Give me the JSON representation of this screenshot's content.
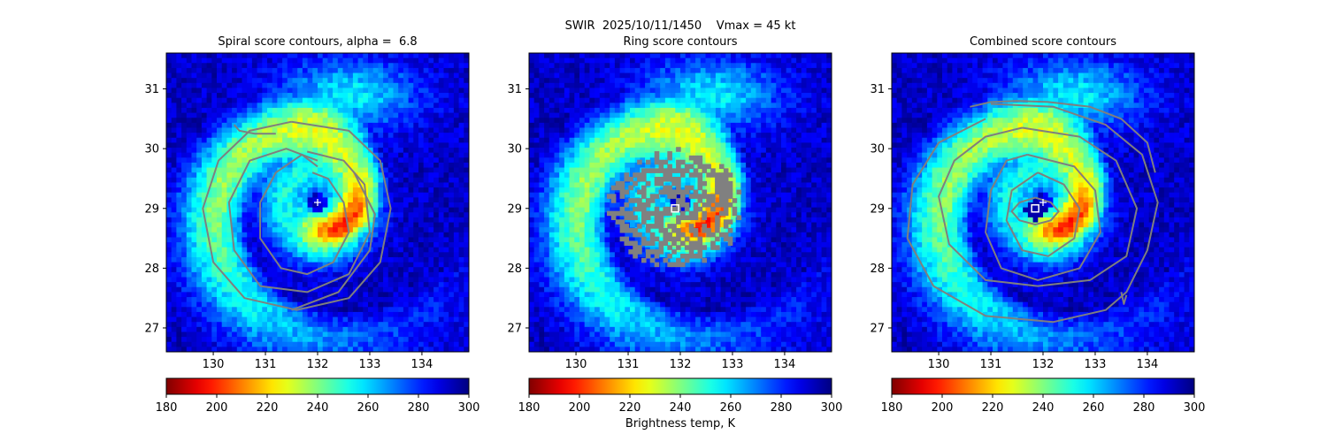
{
  "figure": {
    "suptitle": "SWIR  2025/10/11/1450    Vmax = 45 kt",
    "colorbar_label": "Brightness temp, K"
  },
  "chart_data": [
    {
      "type": "heatmap",
      "title": "Spiral score contours, alpha =  6.8",
      "xlim": [
        129.1,
        134.9
      ],
      "ylim": [
        26.6,
        31.6
      ],
      "x_ticks": [
        130,
        131,
        132,
        133,
        134
      ],
      "y_ticks": [
        27,
        28,
        29,
        30,
        31
      ],
      "colorscale": "jet_r",
      "value_range": [
        180,
        300
      ],
      "colorbar_ticks": [
        180,
        200,
        220,
        240,
        260,
        280,
        300
      ],
      "center_marker": {
        "shape": "plus",
        "x": 132.0,
        "y": 29.1
      },
      "contours": [
        {
          "x": [
            131.9,
            132.2,
            132.5,
            132.6,
            132.3,
            131.8,
            131.3,
            130.9,
            130.9,
            131.2,
            131.7,
            132.0
          ],
          "y": [
            29.6,
            29.5,
            29.1,
            28.6,
            28.1,
            27.9,
            28.0,
            28.5,
            29.1,
            29.6,
            29.9,
            29.7
          ]
        },
        {
          "x": [
            131.8,
            132.5,
            132.9,
            133.0,
            132.6,
            131.8,
            130.9,
            130.4,
            130.3,
            130.7,
            131.4,
            132.0
          ],
          "y": [
            29.95,
            29.8,
            29.4,
            28.6,
            27.9,
            27.6,
            27.7,
            28.3,
            29.1,
            29.8,
            30.0,
            29.8
          ]
        },
        {
          "x": [
            131.5,
            132.6,
            133.2,
            133.4,
            133.2,
            132.6,
            131.6,
            130.6,
            130.0,
            129.8,
            130.1,
            130.7,
            131.5
          ],
          "y": [
            30.45,
            30.3,
            29.8,
            29.0,
            28.1,
            27.5,
            27.3,
            27.5,
            28.1,
            29.0,
            29.8,
            30.3,
            30.45
          ]
        },
        {
          "x": [
            131.5,
            132.4,
            133.0,
            133.1,
            132.7
          ],
          "y": [
            27.3,
            27.6,
            28.3,
            28.9,
            29.6
          ]
        },
        {
          "x": [
            130.4,
            130.5,
            130.8,
            131.2
          ],
          "y": [
            30.4,
            30.3,
            30.25,
            30.25
          ]
        }
      ]
    },
    {
      "type": "heatmap",
      "title": "Ring score contours",
      "xlim": [
        129.1,
        134.9
      ],
      "ylim": [
        26.6,
        31.6
      ],
      "x_ticks": [
        130,
        131,
        132,
        133,
        134
      ],
      "y_ticks": [
        27,
        28,
        29,
        30,
        31
      ],
      "colorscale": "jet_r",
      "value_range": [
        180,
        300
      ],
      "colorbar_ticks": [
        180,
        200,
        220,
        240,
        260,
        280,
        300
      ],
      "center_marker": {
        "shape": "square",
        "x": 131.9,
        "y": 29.0
      },
      "ring_region": {
        "center_x": 131.9,
        "center_y": 29.0,
        "radius_lon": 1.3,
        "radius_lat": 1.0
      }
    },
    {
      "type": "heatmap",
      "title": "Combined score contours",
      "xlim": [
        129.1,
        134.9
      ],
      "ylim": [
        26.6,
        31.6
      ],
      "x_ticks": [
        130,
        131,
        132,
        133,
        134
      ],
      "y_ticks": [
        27,
        28,
        29,
        30,
        31
      ],
      "colorscale": "jet_r",
      "value_range": [
        180,
        300
      ],
      "colorbar_ticks": [
        180,
        200,
        220,
        240,
        260,
        280,
        300
      ],
      "center_marker": {
        "shape": "square",
        "x": 131.85,
        "y": 29.0
      },
      "plus_marker": {
        "x": 132.0,
        "y": 29.1
      },
      "contours": [
        {
          "x": [
            131.85,
            132.15,
            132.3,
            132.15,
            131.85,
            131.55,
            131.4,
            131.55,
            131.85
          ],
          "y": [
            29.18,
            29.1,
            28.95,
            28.8,
            28.73,
            28.8,
            28.95,
            29.1,
            29.18
          ]
        },
        {
          "x": [
            131.9,
            132.4,
            132.7,
            132.6,
            132.1,
            131.6,
            131.3,
            131.4,
            131.9
          ],
          "y": [
            29.6,
            29.4,
            29.0,
            28.5,
            28.2,
            28.3,
            28.8,
            29.3,
            29.6
          ]
        },
        {
          "x": [
            131.7,
            132.6,
            133.0,
            133.1,
            132.7,
            131.9,
            131.2,
            130.9,
            131.0,
            131.3,
            131.7
          ],
          "y": [
            29.9,
            29.7,
            29.3,
            28.6,
            28.0,
            27.8,
            28.0,
            28.6,
            29.3,
            29.8,
            29.9
          ]
        },
        {
          "x": [
            131.6,
            132.7,
            133.4,
            133.8,
            133.6,
            132.9,
            131.9,
            130.9,
            130.2,
            130.0,
            130.3,
            130.9,
            131.6
          ],
          "y": [
            30.35,
            30.2,
            29.8,
            29.0,
            28.2,
            27.8,
            27.7,
            27.8,
            28.4,
            29.2,
            29.8,
            30.2,
            30.35
          ]
        },
        {
          "x": [
            131.0,
            132.2,
            133.2,
            133.9,
            134.2,
            134.0,
            133.6,
            133.2,
            132.2,
            130.9,
            129.9,
            129.4,
            129.5,
            130.0,
            130.9
          ],
          "y": [
            30.75,
            30.7,
            30.4,
            29.9,
            29.1,
            28.3,
            27.6,
            27.3,
            27.1,
            27.2,
            27.7,
            28.5,
            29.4,
            30.1,
            30.5
          ]
        },
        {
          "x": [
            133.5,
            133.55,
            133.6
          ],
          "y": [
            27.6,
            27.4,
            27.55
          ]
        },
        {
          "x": [
            130.6,
            131.0,
            131.5,
            132.1,
            132.9,
            133.5,
            134.0,
            134.15
          ],
          "y": [
            30.7,
            30.78,
            30.8,
            30.78,
            30.7,
            30.5,
            30.1,
            29.6
          ]
        }
      ]
    }
  ]
}
